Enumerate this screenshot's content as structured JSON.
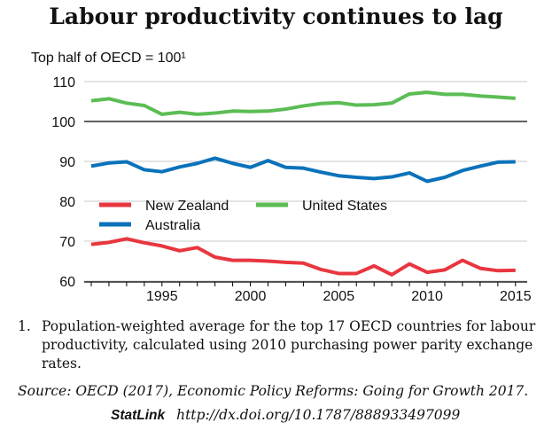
{
  "chart_data": {
    "type": "line",
    "title": "Labour productivity continues to lag",
    "ylabel": "Top half of OECD = 100¹",
    "xlabel": "",
    "ylim": [
      60,
      110
    ],
    "xlim": [
      1991,
      2015
    ],
    "yticks": [
      60,
      70,
      80,
      90,
      100,
      110
    ],
    "xticks": [
      1995,
      2000,
      2005,
      2010,
      2015
    ],
    "grid": true,
    "legend": "lower-left",
    "x": [
      1991,
      1992,
      1993,
      1994,
      1995,
      1996,
      1997,
      1998,
      1999,
      2000,
      2001,
      2002,
      2003,
      2004,
      2005,
      2006,
      2007,
      2008,
      2009,
      2010,
      2011,
      2012,
      2013,
      2014,
      2015
    ],
    "series": [
      {
        "name": "New Zealand",
        "color": "#e8363f",
        "values": [
          69.2,
          69.7,
          70.6,
          69.6,
          68.8,
          67.6,
          68.4,
          66.0,
          65.2,
          65.2,
          65.0,
          64.7,
          64.5,
          62.9,
          61.9,
          61.9,
          63.8,
          61.6,
          64.3,
          62.2,
          62.8,
          65.2,
          63.2,
          62.6,
          62.7
        ]
      },
      {
        "name": "Australia",
        "color": "#0a72ba",
        "values": [
          88.8,
          89.6,
          89.9,
          87.9,
          87.4,
          88.6,
          89.5,
          90.8,
          89.5,
          88.5,
          90.2,
          88.5,
          88.3,
          87.3,
          86.4,
          86.0,
          85.7,
          86.1,
          87.1,
          85.0,
          86.0,
          87.7,
          88.8,
          89.8,
          89.9
        ]
      },
      {
        "name": "United States",
        "color": "#5bbd54",
        "values": [
          105.2,
          105.7,
          104.6,
          104.0,
          101.8,
          102.3,
          101.8,
          102.1,
          102.6,
          102.5,
          102.6,
          103.1,
          103.9,
          104.5,
          104.7,
          104.1,
          104.2,
          104.6,
          106.9,
          107.3,
          106.8,
          106.8,
          106.4,
          106.1,
          105.8
        ]
      }
    ]
  },
  "footnote": {
    "number": "1.",
    "text": "Population-weighted average for the top 17 OECD countries for labour productivity, calculated using 2010 purchasing power parity exchange rates."
  },
  "source": "Source:  OECD (2017), Economic Policy Reforms: Going for Growth 2017.",
  "statlink": {
    "label": "StatLink",
    "url": "http://dx.doi.org/10.1787/888933497099"
  }
}
